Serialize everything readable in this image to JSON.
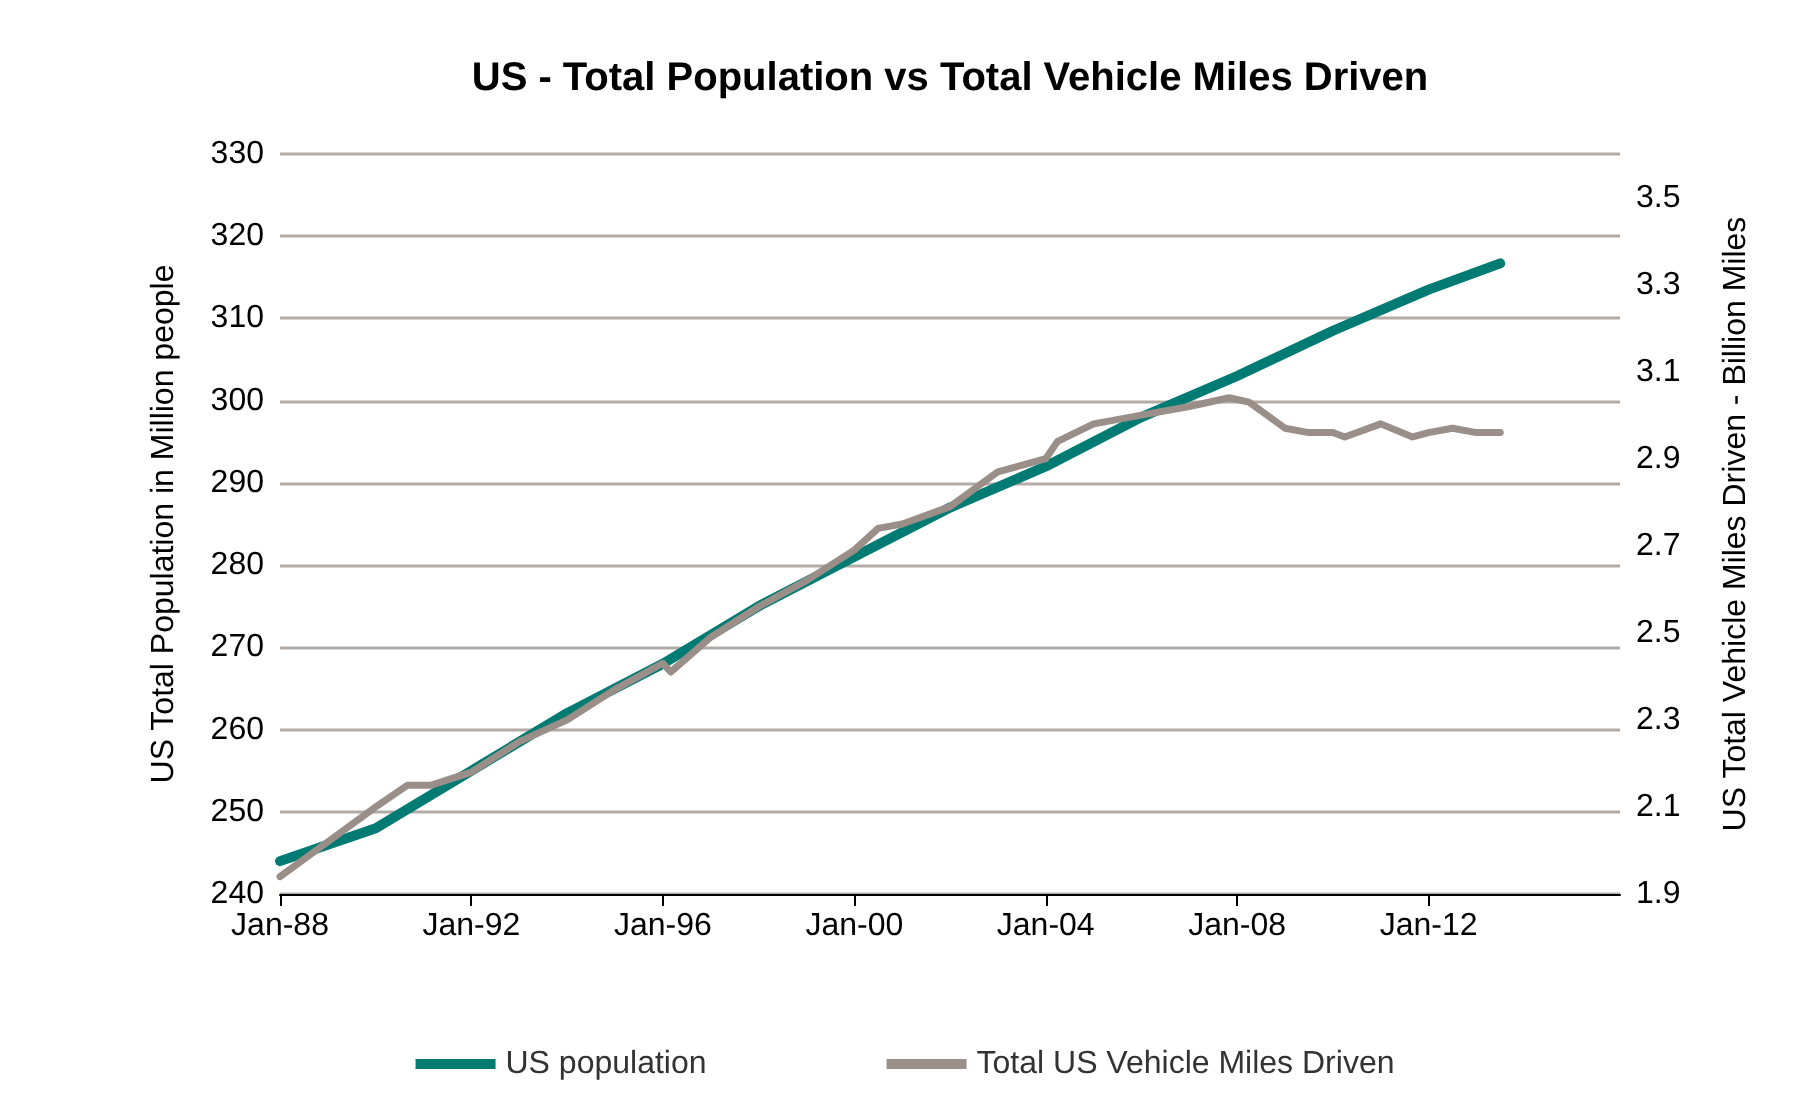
{
  "chart_data": {
    "type": "line",
    "title": "US - Total Population vs Total Vehicle Miles Driven",
    "ylabel": "US Total Population in Million people",
    "y2label": "US Total Vehicle Miles Driven - Billion Miles",
    "xlim": [
      "1988-01",
      "2016-01"
    ],
    "xticks": [
      {
        "value": "1988-01",
        "label": "Jan-88"
      },
      {
        "value": "1992-01",
        "label": "Jan-92"
      },
      {
        "value": "1996-01",
        "label": "Jan-96"
      },
      {
        "value": "2000-01",
        "label": "Jan-00"
      },
      {
        "value": "2004-01",
        "label": "Jan-04"
      },
      {
        "value": "2008-01",
        "label": "Jan-08"
      },
      {
        "value": "2012-01",
        "label": "Jan-12"
      }
    ],
    "ylim": [
      240,
      330
    ],
    "yticks": [
      240,
      250,
      260,
      270,
      280,
      290,
      300,
      310,
      320,
      330
    ],
    "y2lim": [
      1.9,
      3.6
    ],
    "y2ticks": [
      1.9,
      2.1,
      2.3,
      2.5,
      2.7,
      2.9,
      3.1,
      3.3,
      3.5
    ],
    "grid": "y",
    "legend": "bottom",
    "series": [
      {
        "name": "US population",
        "color": "#007b73",
        "x": [
          "1988-01",
          "1990-01",
          "1992-01",
          "1994-01",
          "1996-01",
          "1998-01",
          "2000-01",
          "2002-01",
          "2004-01",
          "2006-01",
          "2008-01",
          "2010-01",
          "2012-01",
          "2013-07"
        ],
        "values": [
          244,
          248,
          255,
          262,
          268,
          275,
          281,
          287,
          292,
          298,
          303,
          308.5,
          313.5,
          316.7
        ]
      },
      {
        "name": "Total US Vehicle Miles Driven",
        "color": "#9a8f88",
        "axis": "y2",
        "x": [
          "1988-01",
          "1989-01",
          "1990-01",
          "1990-09",
          "1991-03",
          "1992-01",
          "1993-01",
          "1994-01",
          "1995-01",
          "1996-01",
          "1996-03",
          "1997-01",
          "1998-01",
          "1999-01",
          "2000-01",
          "2000-07",
          "2001-01",
          "2002-01",
          "2003-01",
          "2004-01",
          "2004-04",
          "2005-01",
          "2006-01",
          "2007-01",
          "2007-11",
          "2008-04",
          "2009-01",
          "2009-07",
          "2010-01",
          "2010-04",
          "2011-01",
          "2011-09",
          "2012-01",
          "2012-07",
          "2013-01",
          "2013-07"
        ],
        "values": [
          1.94,
          2.02,
          2.1,
          2.15,
          2.15,
          2.18,
          2.25,
          2.3,
          2.37,
          2.43,
          2.41,
          2.49,
          2.56,
          2.62,
          2.69,
          2.74,
          2.75,
          2.79,
          2.87,
          2.9,
          2.94,
          2.98,
          3.0,
          3.02,
          3.04,
          3.03,
          2.97,
          2.96,
          2.96,
          2.95,
          2.98,
          2.95,
          2.96,
          2.97,
          2.96,
          2.96
        ]
      }
    ]
  }
}
